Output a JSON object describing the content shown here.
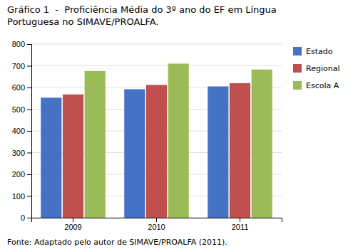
{
  "chart_data": {
    "type": "bar",
    "title": [
      "Gráfico 1  -  Proficiência Média do 3º ano do EF em Língua",
      "Portuguesa no SIMAVE/PROALFA."
    ],
    "annotations": [
      "Fonte: Adaptado pelo autor de SIMAVE/PROALFA (2011)."
    ],
    "categories": [
      "2009",
      "2010",
      "2011"
    ],
    "series": [
      {
        "name": "Estado",
        "color": "#4472c4",
        "values": [
          553,
          592,
          605
        ]
      },
      {
        "name": "Regional",
        "color": "#c0504d",
        "values": [
          568,
          612,
          620
        ]
      },
      {
        "name": "Escola A",
        "color": "#9bbb59",
        "values": [
          676,
          710,
          683
        ]
      }
    ],
    "ylim": [
      0,
      800
    ],
    "yticks": [
      0,
      100,
      200,
      300,
      400,
      500,
      600,
      700,
      800
    ],
    "grid": true,
    "legend": "right"
  }
}
